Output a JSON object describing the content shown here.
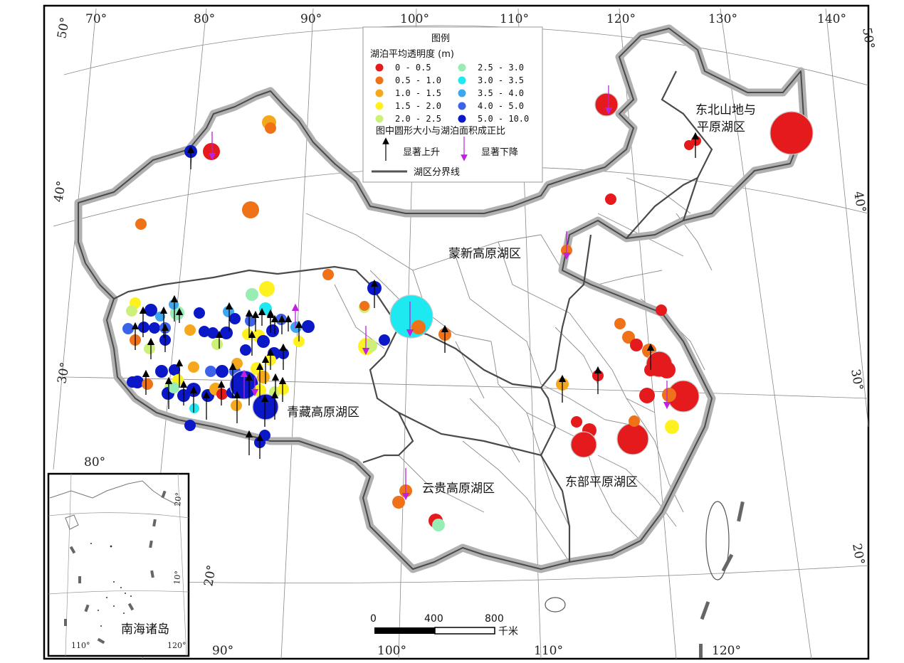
{
  "legend": {
    "title": "图例",
    "subtitle": "湖泊平均透明度 (m)",
    "classes": [
      {
        "label": "0 - 0.5",
        "color": "#e41a1c"
      },
      {
        "label": "0.5 - 1.0",
        "color": "#ef7118"
      },
      {
        "label": "1.0 - 1.5",
        "color": "#f5a81c"
      },
      {
        "label": "1.5 - 2.0",
        "color": "#fef120"
      },
      {
        "label": "2.0 - 2.5",
        "color": "#cdf178"
      },
      {
        "label": "2.5 - 3.0",
        "color": "#98edb4"
      },
      {
        "label": "3.0 - 3.5",
        "color": "#1ee8f0"
      },
      {
        "label": "3.5 - 4.0",
        "color": "#3ea6ee"
      },
      {
        "label": "4.0 - 5.0",
        "color": "#3c62ea"
      },
      {
        "label": "5.0 - 10.0",
        "color": "#0a18c8"
      }
    ],
    "size_note": "图中圆形大小与湖泊面积成正比",
    "rise_label": "显著上升",
    "fall_label": "显著下降",
    "boundary_label": "湖区分界线",
    "rise_color": "#000000",
    "fall_color": "#c020e0"
  },
  "regions": {
    "northeast_line1": "东北山地与",
    "northeast_line2": "平原湖区",
    "mengxin": "蒙新高原湖区",
    "qingzang": "青藏高原湖区",
    "yungui": "云贵高原湖区",
    "dongbu": "东部平原湖区"
  },
  "graticule": {
    "top": [
      "70°",
      "80°",
      "90°",
      "100°",
      "110°",
      "120°",
      "130°",
      "140°"
    ],
    "bottom": [
      "90°",
      "100°",
      "110°",
      "120°"
    ],
    "left": [
      "50°",
      "40°",
      "30°",
      "20°",
      "80°"
    ],
    "right": [
      "50°",
      "40°",
      "30°",
      "20°"
    ]
  },
  "scale_bar": {
    "ticks": [
      "0",
      "400",
      "800"
    ],
    "unit": "千米"
  },
  "inset": {
    "title": "南海诸岛",
    "labels": [
      "20°",
      "10°",
      "110°",
      "120°"
    ]
  }
}
